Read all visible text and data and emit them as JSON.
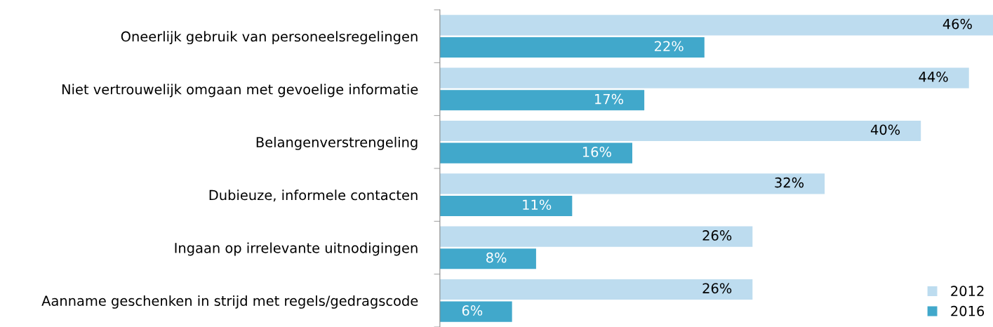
{
  "chart_data": {
    "type": "bar",
    "orientation": "horizontal",
    "categories": [
      "Oneerlijk gebruik van personeelsregelingen",
      "Niet vertrouwelijk omgaan met gevoelige informatie",
      "Belangenverstrengeling",
      "Dubieuze, informele contacten",
      "Ingaan op irrelevante uitnodigingen",
      "Aanname geschenken in strijd met regels/gedragscode"
    ],
    "series": [
      {
        "name": "2012",
        "color": "#bddcef",
        "values": [
          46,
          44,
          40,
          32,
          26,
          26
        ],
        "value_labels": [
          "46%",
          "44%",
          "40%",
          "32%",
          "26%",
          "26%"
        ]
      },
      {
        "name": "2016",
        "color": "#41a8cb",
        "values": [
          22,
          17,
          16,
          11,
          8,
          6
        ],
        "value_labels": [
          "22%",
          "17%",
          "16%",
          "11%",
          "8%",
          "6%"
        ]
      }
    ],
    "xlim": [
      0,
      46
    ],
    "tick_labels": "y",
    "grid": false,
    "legend": "bottom right",
    "marker": "square"
  }
}
